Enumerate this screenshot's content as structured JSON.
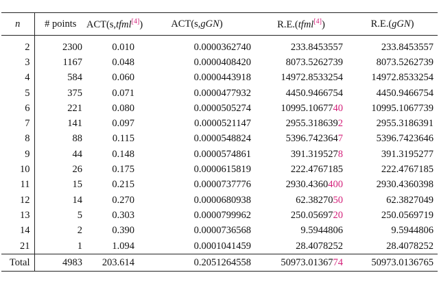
{
  "table": {
    "header": [
      [
        {
          "t": "n",
          "i": true
        }
      ],
      [
        {
          "t": "# points"
        }
      ],
      [
        {
          "t": "ACT(s,"
        },
        {
          "t": "tfml",
          "i": true
        },
        {
          "t": "[4]",
          "r": true
        },
        {
          "t": ")"
        }
      ],
      [
        {
          "t": "ACT(s,"
        },
        {
          "t": "gGN",
          "i": true
        },
        {
          "t": ")"
        }
      ],
      [
        {
          "t": "R.E.("
        },
        {
          "t": "tfml",
          "i": true
        },
        {
          "t": "[4]",
          "r": true
        },
        {
          "t": ")"
        }
      ],
      [
        {
          "t": "R.E.("
        },
        {
          "t": "gGN",
          "i": true
        },
        {
          "t": ")"
        }
      ]
    ],
    "rows": [
      [
        "2",
        "2300",
        "0.010",
        "0.0000362740",
        [
          "233.8453557"
        ],
        "233.8453557"
      ],
      [
        "3",
        "1167",
        "0.048",
        "0.0000408420",
        [
          "8073.5262739"
        ],
        "8073.5262739"
      ],
      [
        "4",
        "584",
        "0.060",
        "0.0000443918",
        [
          "14972.8533254"
        ],
        "14972.8533254"
      ],
      [
        "5",
        "375",
        "0.071",
        "0.0000477932",
        [
          "4450.9466754"
        ],
        "4450.9466754"
      ],
      [
        "6",
        "221",
        "0.080",
        "0.0000505274",
        [
          "10995.10677",
          "40"
        ],
        "10995.1067739"
      ],
      [
        "7",
        "141",
        "0.097",
        "0.0000521147",
        [
          "2955.318639",
          "2"
        ],
        "2955.3186391"
      ],
      [
        "8",
        "88",
        "0.115",
        "0.0000548824",
        [
          "5396.742364",
          "7"
        ],
        "5396.7423646"
      ],
      [
        "9",
        "44",
        "0.148",
        "0.0000574861",
        [
          "391.319527",
          "8"
        ],
        "391.3195277"
      ],
      [
        "10",
        "26",
        "0.175",
        "0.0000615819",
        [
          "222.4767185"
        ],
        "222.4767185"
      ],
      [
        "11",
        "15",
        "0.215",
        "0.0000737776",
        [
          "2930.4360",
          "400"
        ],
        "2930.4360398"
      ],
      [
        "12",
        "14",
        "0.270",
        "0.0000680938",
        [
          "62.38270",
          "50"
        ],
        "62.3827049"
      ],
      [
        "13",
        "5",
        "0.303",
        "0.0000799962",
        [
          "250.05697",
          "20"
        ],
        "250.0569719"
      ],
      [
        "14",
        "2",
        "0.390",
        "0.0000736568",
        [
          "9.5944806"
        ],
        "9.5944806"
      ],
      [
        "21",
        "1",
        "1.094",
        "0.0001041459",
        [
          "28.4078252"
        ],
        "28.4078252"
      ]
    ],
    "total": [
      "Total",
      "4983",
      "203.614",
      "0.2051264558",
      [
        "50973.01367",
        "74"
      ],
      "50973.0136765"
    ]
  }
}
